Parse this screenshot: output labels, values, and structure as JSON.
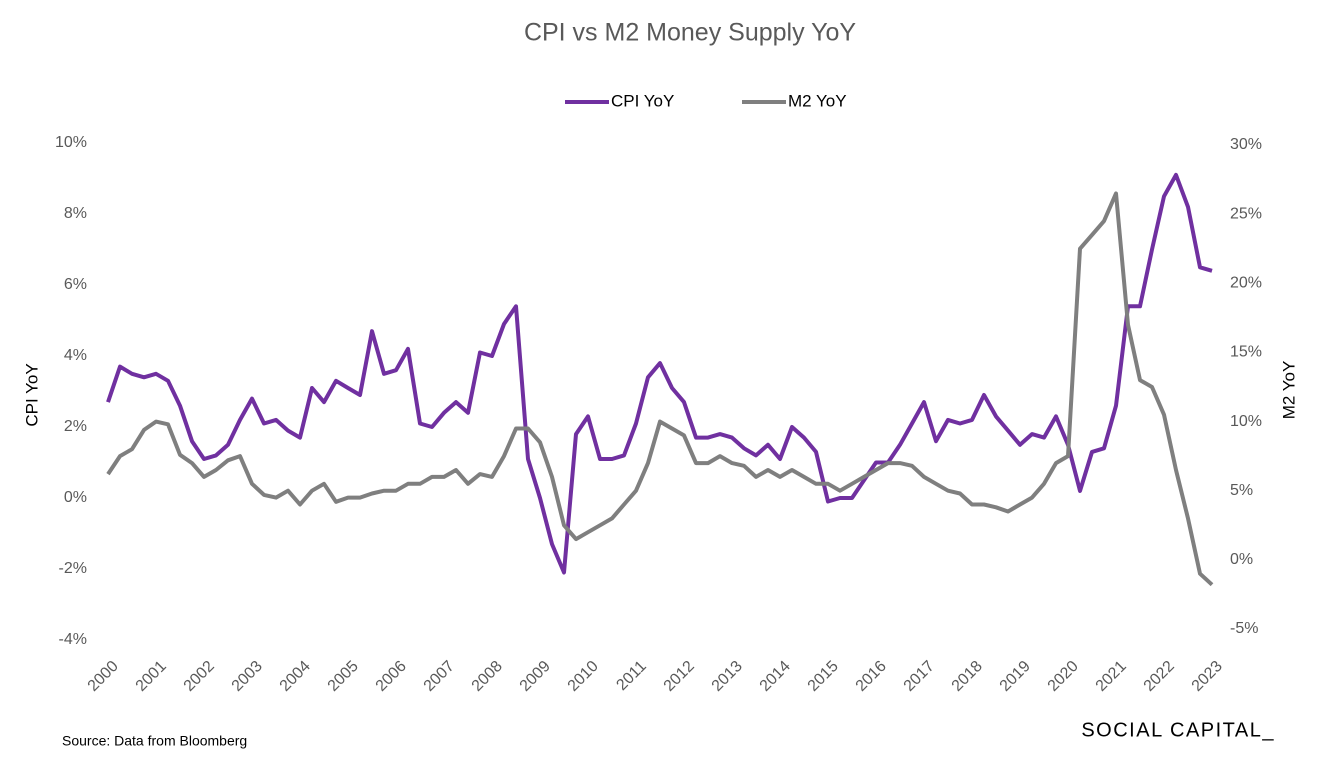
{
  "chart_data": {
    "type": "line",
    "title": "CPI vs M2 Money Supply YoY",
    "ylabel": "CPI YoY",
    "y2label": "M2 YoY",
    "source": "Source: Data from Bloomberg",
    "brand": "SOCIAL CAPITAL_",
    "legend": "top",
    "grid": false,
    "x": [
      2000,
      2000.25,
      2000.5,
      2000.75,
      2001,
      2001.25,
      2001.5,
      2001.75,
      2002,
      2002.25,
      2002.5,
      2002.75,
      2003,
      2003.25,
      2003.5,
      2003.75,
      2004,
      2004.25,
      2004.5,
      2004.75,
      2005,
      2005.25,
      2005.5,
      2005.75,
      2006,
      2006.25,
      2006.5,
      2006.75,
      2007,
      2007.25,
      2007.5,
      2007.75,
      2008,
      2008.25,
      2008.5,
      2008.75,
      2009,
      2009.25,
      2009.5,
      2009.75,
      2010,
      2010.25,
      2010.5,
      2010.75,
      2011,
      2011.25,
      2011.5,
      2011.75,
      2012,
      2012.25,
      2012.5,
      2012.75,
      2013,
      2013.25,
      2013.5,
      2013.75,
      2014,
      2014.25,
      2014.5,
      2014.75,
      2015,
      2015.25,
      2015.5,
      2015.75,
      2016,
      2016.25,
      2016.5,
      2016.75,
      2017,
      2017.25,
      2017.5,
      2017.75,
      2018,
      2018.25,
      2018.5,
      2018.75,
      2019,
      2019.25,
      2019.5,
      2019.75,
      2020,
      2020.25,
      2020.5,
      2020.75,
      2021,
      2021.25,
      2021.5,
      2021.75,
      2022,
      2022.25,
      2022.5,
      2022.75,
      2023
    ],
    "series": [
      {
        "name": "CPI YoY",
        "color": "#7030a0",
        "axis": "y",
        "values": [
          2.7,
          3.7,
          3.5,
          3.4,
          3.5,
          3.3,
          2.6,
          1.6,
          1.1,
          1.2,
          1.5,
          2.2,
          2.8,
          2.1,
          2.2,
          1.9,
          1.7,
          3.1,
          2.7,
          3.3,
          3.1,
          2.9,
          4.7,
          3.5,
          3.6,
          4.2,
          2.1,
          2.0,
          2.4,
          2.7,
          2.4,
          4.1,
          4.0,
          4.9,
          5.4,
          1.1,
          0.0,
          -1.3,
          -2.1,
          1.8,
          2.3,
          1.1,
          1.1,
          1.2,
          2.1,
          3.4,
          3.8,
          3.1,
          2.7,
          1.7,
          1.7,
          1.8,
          1.7,
          1.4,
          1.2,
          1.5,
          1.1,
          2.0,
          1.7,
          1.3,
          -0.1,
          0.0,
          0.0,
          0.5,
          1.0,
          1.0,
          1.5,
          2.1,
          2.7,
          1.6,
          2.2,
          2.1,
          2.2,
          2.9,
          2.3,
          1.9,
          1.5,
          1.8,
          1.7,
          2.3,
          1.5,
          0.2,
          1.3,
          1.4,
          2.6,
          5.4,
          5.4,
          7.0,
          8.5,
          9.1,
          8.2,
          6.5,
          6.4
        ]
      },
      {
        "name": "M2 YoY",
        "color": "#7f7f7f",
        "axis": "y2",
        "values": [
          6.2,
          7.5,
          8.0,
          9.4,
          10.0,
          9.8,
          7.6,
          7.0,
          6.0,
          6.5,
          7.2,
          7.5,
          5.5,
          4.7,
          4.5,
          5.0,
          4.0,
          5.0,
          5.5,
          4.2,
          4.5,
          4.5,
          4.8,
          5.0,
          5.0,
          5.5,
          5.5,
          6.0,
          6.0,
          6.5,
          5.5,
          6.2,
          6.0,
          7.5,
          9.5,
          9.5,
          8.5,
          6.0,
          2.5,
          1.5,
          2.0,
          2.5,
          3.0,
          4.0,
          5.0,
          7.0,
          10.0,
          9.5,
          9.0,
          7.0,
          7.0,
          7.5,
          7.0,
          6.8,
          6.0,
          6.5,
          6.0,
          6.5,
          6.0,
          5.5,
          5.5,
          5.0,
          5.5,
          6.0,
          6.5,
          7.0,
          7.0,
          6.8,
          6.0,
          5.5,
          5.0,
          4.8,
          4.0,
          4.0,
          3.8,
          3.5,
          4.0,
          4.5,
          5.5,
          7.0,
          7.5,
          22.5,
          23.5,
          24.5,
          26.5,
          17.0,
          13.0,
          12.5,
          10.5,
          6.5,
          3.0,
          -1.0,
          -1.8
        ]
      }
    ],
    "xlim": [
      2000,
      2023
    ],
    "xticks": [
      2000,
      2001,
      2002,
      2003,
      2004,
      2005,
      2006,
      2007,
      2008,
      2009,
      2010,
      2011,
      2012,
      2013,
      2014,
      2015,
      2016,
      2017,
      2018,
      2019,
      2020,
      2021,
      2022,
      2023
    ],
    "ylim": [
      -4,
      10
    ],
    "yticks": [
      {
        "value": -4,
        "label": "-4%"
      },
      {
        "value": -2,
        "label": "-2%"
      },
      {
        "value": 0,
        "label": "0%"
      },
      {
        "value": 2,
        "label": "2%"
      },
      {
        "value": 4,
        "label": "4%"
      },
      {
        "value": 6,
        "label": "6%"
      },
      {
        "value": 8,
        "label": "8%"
      },
      {
        "value": 10,
        "label": "10%"
      }
    ],
    "y2lim": [
      -5,
      30
    ],
    "y2ticks": [
      {
        "value": -5,
        "label": "-5%"
      },
      {
        "value": 0,
        "label": "0%"
      },
      {
        "value": 5,
        "label": "5%"
      },
      {
        "value": 10,
        "label": "10%"
      },
      {
        "value": 15,
        "label": "15%"
      },
      {
        "value": 20,
        "label": "20%"
      },
      {
        "value": 25,
        "label": "25%"
      },
      {
        "value": 30,
        "label": "30%"
      }
    ]
  }
}
